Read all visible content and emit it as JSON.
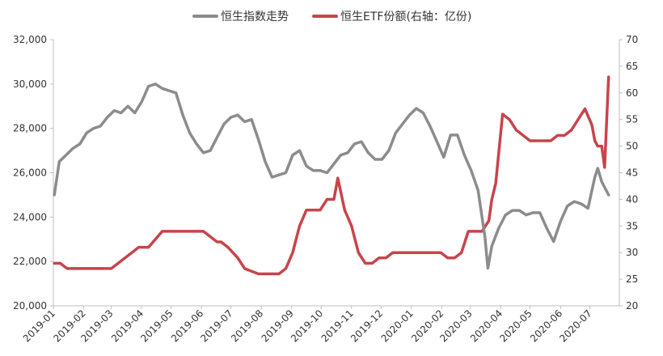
{
  "chart_data": {
    "type": "line",
    "legend_position": "top",
    "grid": false,
    "colors": {
      "hsi": "#8c8c8c",
      "etf": "#c8444a",
      "axis": "#bfbfbf",
      "text": "#333333"
    },
    "series": [
      {
        "name": "恒生指数走势",
        "axis": "left",
        "x": [
          "2019-01-02",
          "2019-01-07",
          "2019-01-14",
          "2019-01-21",
          "2019-01-28",
          "2019-02-04",
          "2019-02-11",
          "2019-02-18",
          "2019-02-25",
          "2019-03-04",
          "2019-03-11",
          "2019-03-18",
          "2019-03-25",
          "2019-04-01",
          "2019-04-08",
          "2019-04-15",
          "2019-04-22",
          "2019-04-29",
          "2019-05-06",
          "2019-05-13",
          "2019-05-20",
          "2019-05-27",
          "2019-06-03",
          "2019-06-10",
          "2019-06-17",
          "2019-06-24",
          "2019-07-01",
          "2019-07-08",
          "2019-07-15",
          "2019-07-22",
          "2019-07-29",
          "2019-08-05",
          "2019-08-12",
          "2019-08-19",
          "2019-08-26",
          "2019-09-02",
          "2019-09-09",
          "2019-09-16",
          "2019-09-23",
          "2019-09-30",
          "2019-10-07",
          "2019-10-14",
          "2019-10-21",
          "2019-10-28",
          "2019-11-04",
          "2019-11-11",
          "2019-11-18",
          "2019-11-25",
          "2019-12-02",
          "2019-12-09",
          "2019-12-16",
          "2019-12-23",
          "2019-12-30",
          "2020-01-06",
          "2020-01-13",
          "2020-01-20",
          "2020-01-27",
          "2020-02-03",
          "2020-02-10",
          "2020-02-17",
          "2020-02-24",
          "2020-03-02",
          "2020-03-09",
          "2020-03-16",
          "2020-03-19",
          "2020-03-23",
          "2020-03-30",
          "2020-04-06",
          "2020-04-13",
          "2020-04-20",
          "2020-04-27",
          "2020-05-04",
          "2020-05-11",
          "2020-05-18",
          "2020-05-25",
          "2020-06-01",
          "2020-06-08",
          "2020-06-15",
          "2020-06-22",
          "2020-06-29",
          "2020-07-06",
          "2020-07-09",
          "2020-07-13",
          "2020-07-20"
        ],
        "values": [
          25000,
          26500,
          26800,
          27100,
          27300,
          27800,
          28000,
          28100,
          28500,
          28800,
          28700,
          29000,
          28700,
          29200,
          29900,
          30000,
          29800,
          29700,
          29600,
          28600,
          27800,
          27300,
          26900,
          27000,
          27600,
          28200,
          28500,
          28600,
          28300,
          28400,
          27500,
          26500,
          25800,
          25900,
          26000,
          26800,
          27000,
          26300,
          26100,
          26100,
          26000,
          26400,
          26800,
          26900,
          27300,
          27400,
          26900,
          26600,
          26600,
          27000,
          27800,
          28200,
          28600,
          28900,
          28700,
          28100,
          27400,
          26700,
          27700,
          27700,
          26800,
          26100,
          25200,
          23100,
          21700,
          22700,
          23500,
          24100,
          24300,
          24300,
          24100,
          24200,
          24200,
          23500,
          22900,
          23800,
          24500,
          24700,
          24600,
          24400,
          25800,
          26200,
          25600,
          25000
        ]
      },
      {
        "name": "恒生ETF份额(右轴：亿份)",
        "axis": "right",
        "x": [
          "2019-01-02",
          "2019-01-08",
          "2019-01-15",
          "2019-01-29",
          "2019-02-12",
          "2019-02-18",
          "2019-02-22",
          "2019-03-01",
          "2019-03-08",
          "2019-03-15",
          "2019-03-22",
          "2019-03-29",
          "2019-04-01",
          "2019-04-08",
          "2019-04-22",
          "2019-05-06",
          "2019-05-13",
          "2019-05-20",
          "2019-05-27",
          "2019-05-31",
          "2019-06-03",
          "2019-06-10",
          "2019-06-17",
          "2019-06-21",
          "2019-06-28",
          "2019-07-08",
          "2019-07-15",
          "2019-07-22",
          "2019-07-29",
          "2019-08-05",
          "2019-08-12",
          "2019-08-19",
          "2019-08-26",
          "2019-09-02",
          "2019-09-09",
          "2019-09-16",
          "2019-09-23",
          "2019-09-30",
          "2019-10-07",
          "2019-10-14",
          "2019-10-18",
          "2019-10-25",
          "2019-11-01",
          "2019-11-08",
          "2019-11-15",
          "2019-11-22",
          "2019-11-29",
          "2019-12-06",
          "2019-12-13",
          "2019-12-20",
          "2019-12-27",
          "2020-01-03",
          "2020-01-10",
          "2020-01-17",
          "2020-01-24",
          "2020-01-31",
          "2020-02-07",
          "2020-02-14",
          "2020-02-21",
          "2020-02-28",
          "2020-03-06",
          "2020-03-13",
          "2020-03-20",
          "2020-03-23",
          "2020-03-27",
          "2020-04-03",
          "2020-04-10",
          "2020-04-17",
          "2020-04-24",
          "2020-05-01",
          "2020-05-08",
          "2020-05-15",
          "2020-05-22",
          "2020-05-29",
          "2020-06-05",
          "2020-06-12",
          "2020-06-19",
          "2020-06-26",
          "2020-07-03",
          "2020-07-06",
          "2020-07-09",
          "2020-07-13",
          "2020-07-16",
          "2020-07-20"
        ],
        "values": [
          28,
          28,
          27,
          27,
          27,
          27,
          27,
          27,
          28,
          29,
          30,
          31,
          31,
          31,
          34,
          34,
          34,
          34,
          34,
          34,
          34,
          33,
          32,
          32,
          31,
          29,
          27,
          26.5,
          26,
          26,
          26,
          26,
          27,
          30,
          35,
          38,
          38,
          38,
          40,
          40,
          44,
          38,
          35,
          30,
          28,
          28,
          29,
          29,
          30,
          30,
          30,
          30,
          30,
          30,
          30,
          30,
          29,
          29,
          30,
          34,
          34,
          34,
          36,
          40,
          43,
          56,
          55,
          53,
          52,
          51,
          51,
          51,
          51,
          52,
          52,
          53,
          55,
          57,
          54,
          51,
          50,
          50,
          46,
          63
        ]
      }
    ],
    "left_axis": {
      "min": 20000,
      "max": 32000,
      "ticks": [
        "20,000",
        "22,000",
        "24,000",
        "26,000",
        "28,000",
        "30,000",
        "32,000"
      ]
    },
    "right_axis": {
      "min": 20,
      "max": 70,
      "ticks": [
        "20",
        "25",
        "30",
        "35",
        "40",
        "45",
        "50",
        "55",
        "60",
        "65",
        "70"
      ]
    },
    "x_axis": {
      "start": "2019-01-01",
      "end": "2020-07-31",
      "ticks": [
        "2019-01",
        "2019-02",
        "2019-03",
        "2019-04",
        "2019-05",
        "2019-06",
        "2019-07",
        "2019-08",
        "2019-09",
        "2019-10",
        "2019-11",
        "2019-12",
        "2020-01",
        "2020-02",
        "2020-03",
        "2020-04",
        "2020-05",
        "2020-06",
        "2020-07"
      ]
    }
  }
}
